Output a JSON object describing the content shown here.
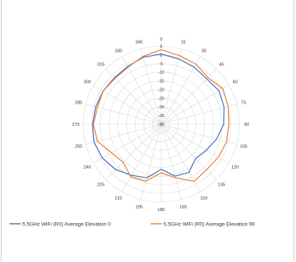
{
  "chart_data": {
    "type": "polar-line",
    "angle_direction": "clockwise",
    "zero_position": "top",
    "radial_ticks": [
      "5",
      "0",
      "-5",
      "-10",
      "-15",
      "-20",
      "-25",
      "-30",
      "-35",
      "-40"
    ],
    "radial_range": [
      -40,
      5
    ],
    "angle_labels": [
      "0",
      "15",
      "30",
      "45",
      "60",
      "75",
      "90",
      "105",
      "120",
      "135",
      "150",
      "165",
      "180",
      "195",
      "210",
      "225",
      "240",
      "255",
      "270",
      "285",
      "300",
      "315",
      "330",
      "345"
    ],
    "grid": true,
    "legend_position": "bottom",
    "series": [
      {
        "name": "5.5GHz WiFi (R0) Average Elevation 0",
        "color": "#4472c4",
        "theta": [
          0,
          15,
          30,
          45,
          60,
          75,
          90,
          105,
          120,
          135,
          150,
          165,
          180,
          195,
          210,
          225,
          240,
          255,
          270,
          285,
          300,
          315,
          330,
          345
        ],
        "r": [
          0.5,
          -1,
          -2,
          -3,
          -1.5,
          -2.5,
          -4,
          -7,
          -10,
          -12,
          -8,
          -9,
          -14,
          -8,
          -6,
          -3,
          -1,
          0,
          -0.5,
          -1,
          -1.5,
          -2,
          -1.5,
          0
        ]
      },
      {
        "name": "5.5GHz WiFi (R0) Average Elevation 90",
        "color": "#ed7d31",
        "theta": [
          0,
          15,
          30,
          45,
          60,
          75,
          90,
          105,
          120,
          135,
          150,
          165,
          180,
          195,
          210,
          225,
          240,
          255,
          270,
          285,
          300,
          315,
          330,
          345
        ],
        "r": [
          3,
          1,
          0,
          -2,
          1,
          0,
          -1,
          -1,
          -2,
          -3,
          -2,
          -8,
          -12,
          -6,
          -5,
          -9,
          -7,
          -2,
          -1,
          -2,
          -1.5,
          -2.5,
          -2,
          0.5
        ]
      }
    ]
  }
}
